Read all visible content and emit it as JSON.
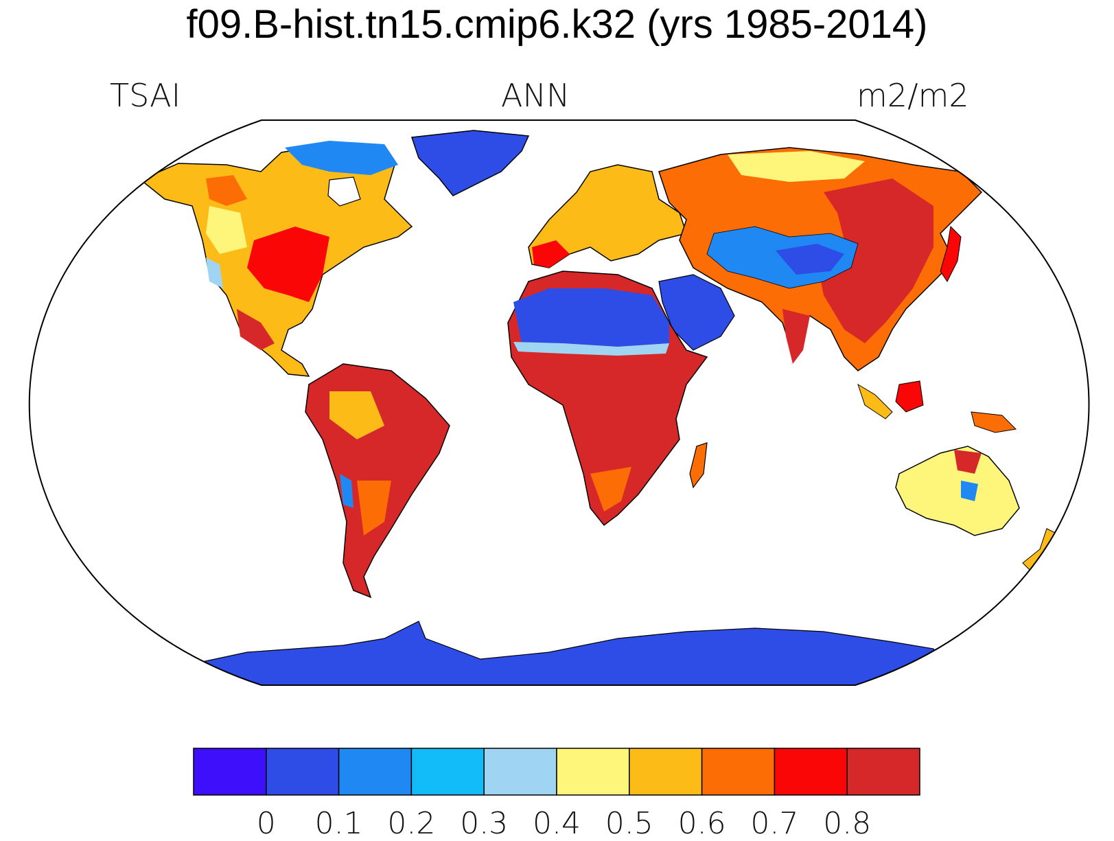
{
  "title": "f09.B-hist.tn15.cmip6.k32 (yrs 1985-2014)",
  "left_label": "TSAI",
  "center_label": "ANN",
  "right_label": "m2/m2",
  "colorbar": {
    "colors": [
      "#3d0ffa",
      "#2d4de6",
      "#1f88f3",
      "#12bcf9",
      "#9fd4f3",
      "#fdf67a",
      "#fcbb17",
      "#fc6d05",
      "#fb0606",
      "#d62828"
    ],
    "labels": [
      "0",
      "0.1",
      "0.2",
      "0.3",
      "0.4",
      "0.5",
      "0.6",
      "0.7",
      "0.8"
    ]
  },
  "colors": {
    "ocean": "#ffffff",
    "coast": "#000000"
  }
}
